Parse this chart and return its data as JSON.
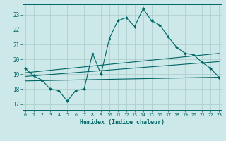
{
  "title": "",
  "xlabel": "Humidex (Indice chaleur)",
  "background_color": "#cce8e8",
  "grid_color": "#aacccc",
  "line_color": "#006666",
  "x_ticks": [
    0,
    1,
    2,
    3,
    4,
    5,
    6,
    7,
    8,
    9,
    10,
    11,
    12,
    13,
    14,
    15,
    16,
    17,
    18,
    19,
    20,
    21,
    22,
    23
  ],
  "y_ticks": [
    17,
    18,
    19,
    20,
    21,
    22,
    23
  ],
  "ylim": [
    16.6,
    23.7
  ],
  "xlim": [
    -0.3,
    23.3
  ],
  "line1_x": [
    0,
    1,
    2,
    3,
    4,
    5,
    6,
    7,
    8,
    9,
    10,
    11,
    12,
    13,
    14,
    15,
    16,
    17,
    18,
    19,
    20,
    21,
    22,
    23
  ],
  "line1_y": [
    19.4,
    18.9,
    18.6,
    18.0,
    17.9,
    17.2,
    17.9,
    18.0,
    20.4,
    19.0,
    21.4,
    22.6,
    22.8,
    22.2,
    23.4,
    22.6,
    22.3,
    21.5,
    20.8,
    20.4,
    20.3,
    19.8,
    19.4,
    18.8
  ],
  "line2_x": [
    0,
    23
  ],
  "line2_y": [
    19.1,
    20.4
  ],
  "line3_x": [
    0,
    23
  ],
  "line3_y": [
    18.85,
    19.85
  ],
  "line4_x": [
    0,
    23
  ],
  "line4_y": [
    18.55,
    18.8
  ]
}
